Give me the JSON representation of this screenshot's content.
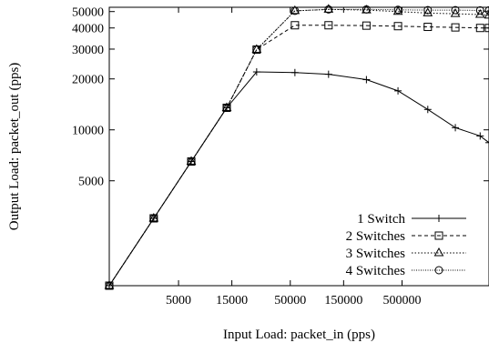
{
  "chart_data": {
    "type": "line",
    "title": "",
    "xlabel": "Input Load: packet_in (pps)",
    "ylabel": "Output Load: packet_out (pps)",
    "x_scale": "log",
    "y_scale": "log",
    "xlim": [
      1200,
      3000000
    ],
    "ylim": [
      1200,
      53000
    ],
    "x_ticks": [
      5000,
      15000,
      50000,
      150000,
      500000
    ],
    "x_tick_labels": [
      "5000",
      "15000",
      "50000",
      "150000",
      "500000"
    ],
    "y_ticks": [
      5000,
      10000,
      20000,
      30000,
      40000,
      50000
    ],
    "y_tick_labels": [
      "5000",
      "10000",
      "20000",
      "30000",
      "40000",
      "50000"
    ],
    "grid": false,
    "legend_position": "bottom-right",
    "series": [
      {
        "name": "1 Switch",
        "marker": "plus",
        "dash": "solid",
        "x": [
          1200,
          3000,
          6500,
          13500,
          25000,
          55000,
          110000,
          240000,
          460000,
          850000,
          1500000,
          2500000,
          3000000
        ],
        "y": [
          1200,
          3000,
          6500,
          13500,
          22000,
          21800,
          21300,
          19800,
          17000,
          13200,
          10300,
          9200,
          8400
        ]
      },
      {
        "name": "2 Switches",
        "marker": "square",
        "dash": "dashed",
        "x": [
          1200,
          3000,
          6500,
          13500,
          25000,
          55000,
          110000,
          240000,
          460000,
          850000,
          1500000,
          2500000,
          3000000
        ],
        "y": [
          1200,
          3000,
          6500,
          13500,
          29800,
          41500,
          41500,
          41300,
          41000,
          40600,
          40300,
          40000,
          40000
        ]
      },
      {
        "name": "3 Switches",
        "marker": "triangle",
        "dash": "dotted",
        "x": [
          1200,
          3000,
          6500,
          13500,
          25000,
          55000,
          110000,
          240000,
          460000,
          850000,
          1500000,
          2500000,
          3000000
        ],
        "y": [
          1200,
          3000,
          6500,
          13500,
          29800,
          50500,
          51500,
          51000,
          50000,
          49000,
          48500,
          48000,
          47500
        ]
      },
      {
        "name": "4 Switches",
        "marker": "circle",
        "dash": "dotted-fine",
        "x": [
          1200,
          3000,
          6500,
          13500,
          25000,
          55000,
          110000,
          240000,
          460000,
          850000,
          1500000,
          2500000,
          3000000
        ],
        "y": [
          1200,
          3000,
          6500,
          13500,
          29800,
          50500,
          51500,
          51500,
          51200,
          51000,
          51000,
          50800,
          50800
        ]
      }
    ]
  }
}
